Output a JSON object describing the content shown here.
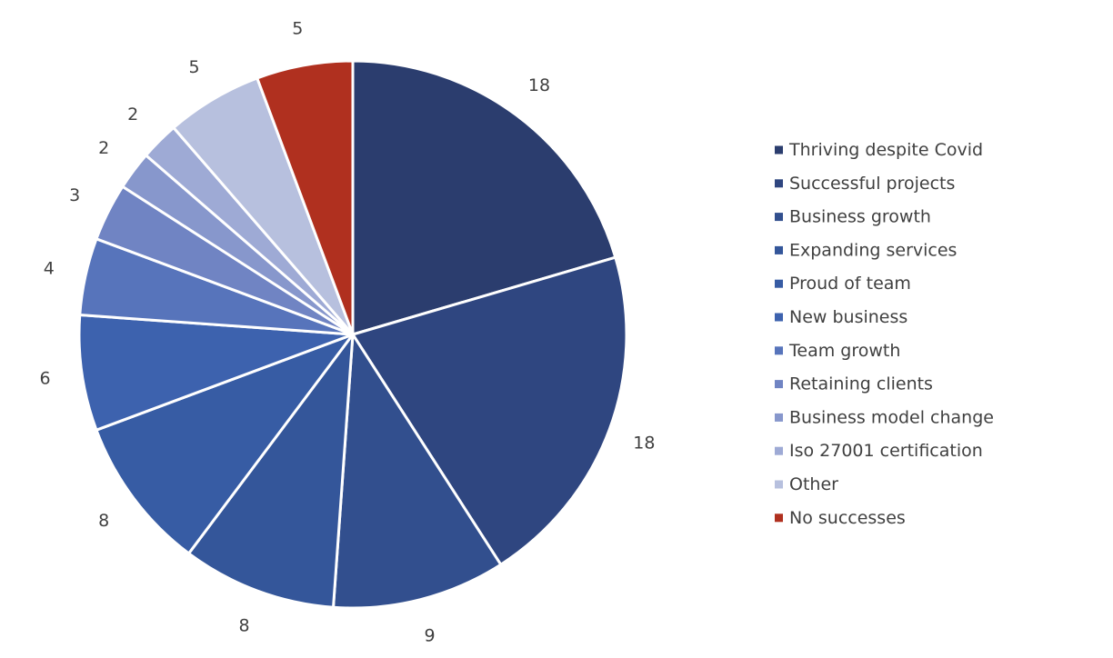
{
  "chart_data": {
    "type": "pie",
    "title": "",
    "start_angle_deg": 0,
    "direction": "clockwise",
    "legend_position": "right",
    "slices": [
      {
        "label": "Thriving despite Covid",
        "value": 18,
        "color": "#2b3d6e"
      },
      {
        "label": "Successful projects",
        "value": 18,
        "color": "#2f4680"
      },
      {
        "label": "Business growth",
        "value": 9,
        "color": "#324f8e"
      },
      {
        "label": "Expanding services",
        "value": 8,
        "color": "#34569a"
      },
      {
        "label": "Proud of team",
        "value": 8,
        "color": "#375ca4"
      },
      {
        "label": "New business",
        "value": 6,
        "color": "#3d62ae"
      },
      {
        "label": "Team growth",
        "value": 4,
        "color": "#5774bb"
      },
      {
        "label": "Retaining clients",
        "value": 3,
        "color": "#7084c3"
      },
      {
        "label": "Business model change",
        "value": 2,
        "color": "#8797cc"
      },
      {
        "label": "Iso 27001 certification",
        "value": 2,
        "color": "#9eaad5"
      },
      {
        "label": "Other",
        "value": 5,
        "color": "#b7c0de"
      },
      {
        "label": "No successes",
        "value": 5,
        "color": "#b0301f"
      }
    ]
  }
}
